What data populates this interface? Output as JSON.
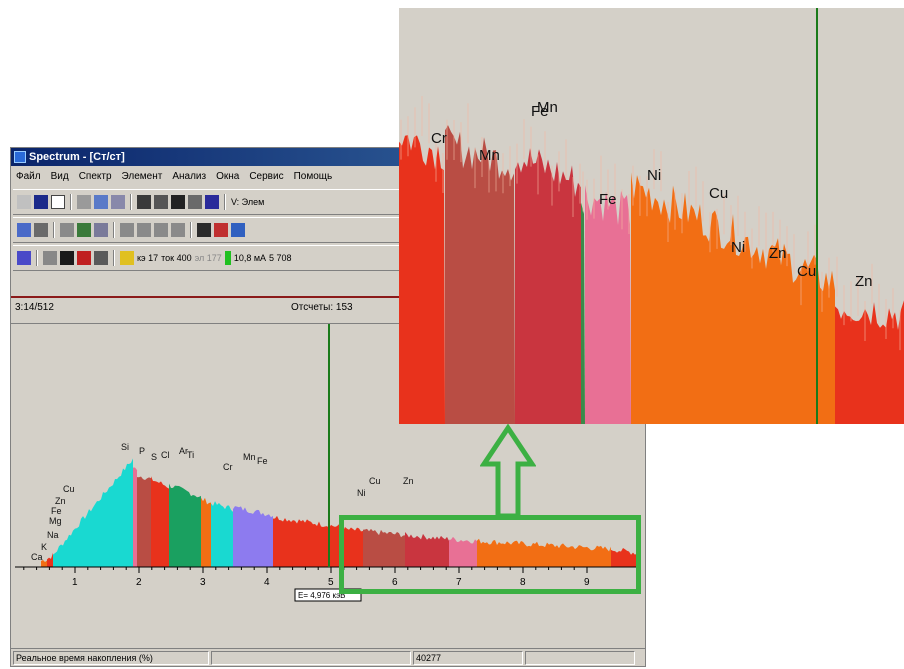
{
  "window": {
    "title": "Spectrum - [Ст/ст]",
    "menu": [
      "Файл",
      "Вид",
      "Спектр",
      "Элемент",
      "Анализ",
      "Окна",
      "Сервис",
      "Помощь"
    ]
  },
  "toolbar3": {
    "readout1": "кэ 17",
    "readout2": "ток 400",
    "readout3": "эл 177",
    "readout4": "10,8 мА",
    "readout5": "5 708"
  },
  "toolbar1": {
    "combo": "V: Элем"
  },
  "info": {
    "left": "3:14/512",
    "counts": "Отсчеты: 153"
  },
  "status": {
    "label": "Реальное время накопления (%)",
    "value": "40277"
  },
  "cursor_readout": "E= 4,976 кэВ",
  "x_ticks": [
    "1",
    "2",
    "3",
    "4",
    "5",
    "6",
    "7",
    "8",
    "9"
  ],
  "main_labels": [
    "Ca",
    "K",
    "Na",
    "Mg",
    "Fe",
    "Zn",
    "Cu",
    "Si",
    "P",
    "S",
    "Cl",
    "Ar",
    "Ti",
    "Cr",
    "Mn",
    "Fe",
    "Ni",
    "Cu",
    "Zn"
  ],
  "zoom_labels": [
    "Cr",
    "Mn",
    "Fe",
    "Fe",
    "Ni",
    "Cu",
    "Ni",
    "Zn",
    "Cu",
    "Zn"
  ],
  "colors": {
    "accent": "#3cb043",
    "red": "#e8321c",
    "brown": "#b94d44",
    "crimson": "#c9353f",
    "pink": "#e87095",
    "orange": "#f26e14",
    "cyan": "#19d9d1",
    "green": "#1aa060",
    "violet": "#8d7bef"
  }
}
